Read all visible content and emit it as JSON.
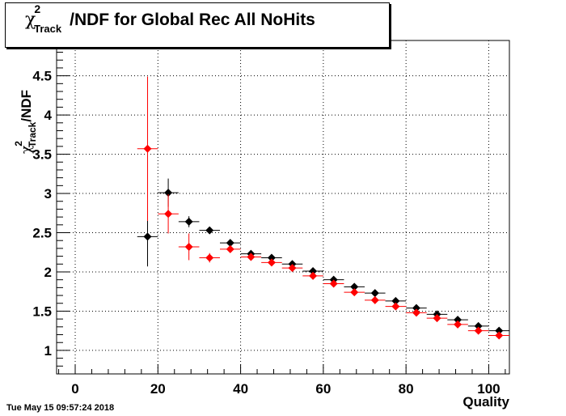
{
  "title": {
    "symbol": "χ",
    "superscript": "2",
    "subscript": "Track",
    "text": "/NDF for Global Rec All NoHits"
  },
  "footer": {
    "date": "Tue May 15 09:57:24 2018"
  },
  "chart_data": {
    "type": "scatter",
    "title": "χ²_Track/NDF for Global Rec All NoHits",
    "xlabel": "Quality",
    "ylabel": "χ²_Track/NDF",
    "ylabel_parts": {
      "symbol": "χ",
      "superscript": "2",
      "subscript": "Track",
      "text": "/NDF"
    },
    "xlim": [
      -4.5,
      105
    ],
    "ylim": [
      0.7,
      4.95
    ],
    "xticks": [
      0,
      20,
      40,
      60,
      80,
      100
    ],
    "yticks": [
      1,
      1.5,
      2,
      2.5,
      3,
      3.5,
      4,
      4.5
    ],
    "grid": true,
    "bin_width": 5,
    "series": [
      {
        "color": "#000000",
        "points": [
          {
            "x": 17.5,
            "y": 2.45,
            "err": 0.38
          },
          {
            "x": 22.5,
            "y": 3.01,
            "err": 0.18
          },
          {
            "x": 27.5,
            "y": 2.64,
            "err": 0.07
          },
          {
            "x": 32.5,
            "y": 2.53,
            "err": 0.03
          },
          {
            "x": 37.5,
            "y": 2.37,
            "err": 0.02
          },
          {
            "x": 42.5,
            "y": 2.23,
            "err": 0.02
          },
          {
            "x": 47.5,
            "y": 2.18,
            "err": 0.01
          },
          {
            "x": 52.5,
            "y": 2.1,
            "err": 0.01
          },
          {
            "x": 57.5,
            "y": 2.01,
            "err": 0.01
          },
          {
            "x": 62.5,
            "y": 1.9,
            "err": 0.01
          },
          {
            "x": 67.5,
            "y": 1.81,
            "err": 0.01
          },
          {
            "x": 72.5,
            "y": 1.73,
            "err": 0.01
          },
          {
            "x": 77.5,
            "y": 1.63,
            "err": 0.01
          },
          {
            "x": 82.5,
            "y": 1.54,
            "err": 0.01
          },
          {
            "x": 87.5,
            "y": 1.46,
            "err": 0.01
          },
          {
            "x": 92.5,
            "y": 1.39,
            "err": 0.01
          },
          {
            "x": 97.5,
            "y": 1.31,
            "err": 0.01
          },
          {
            "x": 102.5,
            "y": 1.25,
            "err": 0.01
          }
        ]
      },
      {
        "color": "#ff0000",
        "points": [
          {
            "x": 17.5,
            "y": 3.57,
            "err": 0.92
          },
          {
            "x": 22.5,
            "y": 2.74,
            "err": 0.25
          },
          {
            "x": 27.5,
            "y": 2.32,
            "err": 0.17
          },
          {
            "x": 32.5,
            "y": 2.18,
            "err": 0.06
          },
          {
            "x": 37.5,
            "y": 2.29,
            "err": 0.04
          },
          {
            "x": 42.5,
            "y": 2.19,
            "err": 0.02
          },
          {
            "x": 47.5,
            "y": 2.12,
            "err": 0.01
          },
          {
            "x": 52.5,
            "y": 2.05,
            "err": 0.01
          },
          {
            "x": 57.5,
            "y": 1.95,
            "err": 0.01
          },
          {
            "x": 62.5,
            "y": 1.85,
            "err": 0.01
          },
          {
            "x": 67.5,
            "y": 1.74,
            "err": 0.01
          },
          {
            "x": 72.5,
            "y": 1.64,
            "err": 0.01
          },
          {
            "x": 77.5,
            "y": 1.56,
            "err": 0.01
          },
          {
            "x": 82.5,
            "y": 1.48,
            "err": 0.01
          },
          {
            "x": 87.5,
            "y": 1.41,
            "err": 0.01
          },
          {
            "x": 92.5,
            "y": 1.33,
            "err": 0.01
          },
          {
            "x": 97.5,
            "y": 1.25,
            "err": 0.01
          },
          {
            "x": 102.5,
            "y": 1.19,
            "err": 0.01
          }
        ]
      }
    ]
  }
}
